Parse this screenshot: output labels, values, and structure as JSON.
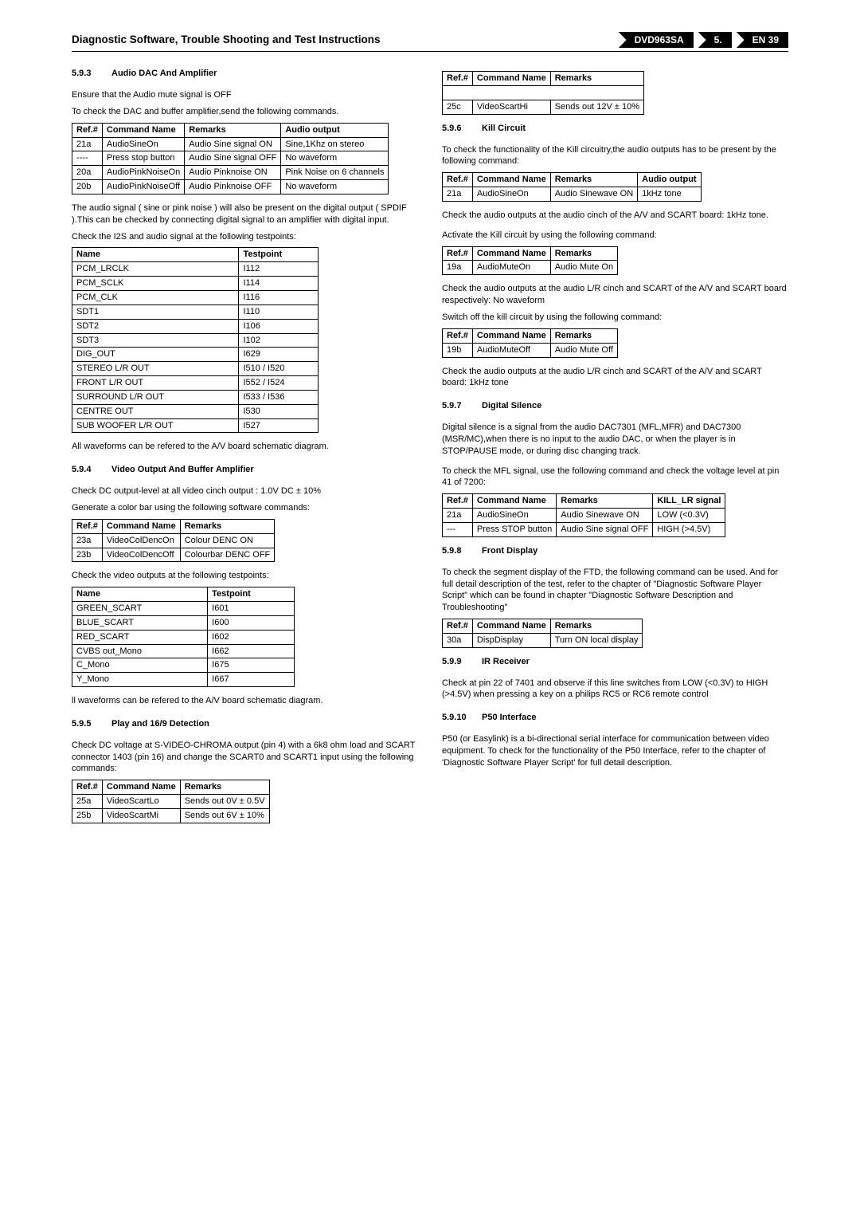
{
  "header": {
    "title": "Diagnostic Software, Trouble Shooting and Test Instructions",
    "tabs": [
      "DVD963SA",
      "5.",
      "EN 39"
    ]
  },
  "left": {
    "s593": {
      "num": "5.9.3",
      "title": "Audio DAC And Amplifier",
      "p1": "Ensure that the Audio mute signal is OFF",
      "p2": "To check the DAC and buffer amplifier,send the following commands.",
      "table1": {
        "headers": [
          "Ref.#",
          "Command Name",
          "Remarks",
          "Audio output"
        ],
        "rows": [
          [
            "21a",
            "AudioSineOn",
            "Audio Sine signal ON",
            "Sine,1Khz on stereo"
          ],
          [
            "----",
            "Press stop button",
            "Audio Sine signal OFF",
            "No waveform"
          ],
          [
            "20a",
            "AudioPinkNoiseOn",
            "Audio Pinknoise ON",
            "Pink Noise on 6 channels"
          ],
          [
            "20b",
            "AudioPinkNoiseOff",
            "Audio Pinknoise OFF",
            "No waveform"
          ]
        ]
      },
      "p3": "The audio signal ( sine or pink noise ) will also be present on the digital output ( SPDIF ).This can be checked by connecting digital signal to an amplifier with digital input.",
      "p4": "Check the I2S and audio signal at the following testpoints:",
      "table2": {
        "headers": [
          "Name",
          "Testpoint"
        ],
        "rows": [
          [
            "PCM_LRCLK",
            "I112"
          ],
          [
            "PCM_SCLK",
            "I114"
          ],
          [
            "PCM_CLK",
            "I116"
          ],
          [
            "SDT1",
            "I110"
          ],
          [
            "SDT2",
            "I106"
          ],
          [
            "SDT3",
            "I102"
          ],
          [
            "DIG_OUT",
            "I629"
          ],
          [
            "STEREO L/R OUT",
            "I510 / I520"
          ],
          [
            "FRONT L/R OUT",
            "I552 / I524"
          ],
          [
            "SURROUND L/R OUT",
            "I533 / I536"
          ],
          [
            "CENTRE OUT",
            "I530"
          ],
          [
            "SUB WOOFER L/R OUT",
            "I527"
          ]
        ]
      },
      "p5": "All waveforms can be refered to the A/V board schematic diagram."
    },
    "s594": {
      "num": "5.9.4",
      "title": "Video Output And Buffer Amplifier",
      "p1": "Check DC output-level at all video cinch output : 1.0V DC ± 10%",
      "p2": "Generate a color bar using the following software commands:",
      "table1": {
        "headers": [
          "Ref.#",
          "Command Name",
          "Remarks"
        ],
        "rows": [
          [
            "23a",
            "VideoColDencOn",
            "Colour DENC ON"
          ],
          [
            "23b",
            "VideoColDencOff",
            "Colourbar DENC OFF"
          ]
        ]
      },
      "p3": "Check the video outputs at the following testpoints:",
      "table2": {
        "headers": [
          "Name",
          "Testpoint"
        ],
        "rows": [
          [
            "GREEN_SCART",
            "I601"
          ],
          [
            "BLUE_SCART",
            "I600"
          ],
          [
            "RED_SCART",
            "I602"
          ],
          [
            "CVBS out_Mono",
            "I662"
          ],
          [
            "C_Mono",
            "I675"
          ],
          [
            "Y_Mono",
            "I667"
          ]
        ]
      },
      "p4": "ll waveforms can be refered to the A/V board schematic diagram."
    },
    "s595": {
      "num": "5.9.5",
      "title": "Play and 16/9 Detection",
      "p1": "Check DC voltage at S-VIDEO-CHROMA output (pin 4) with a 6k8 ohm load and SCART connector 1403 (pin 16) and change the SCART0 and SCART1 input using the following commands:",
      "table1": {
        "headers": [
          "Ref.#",
          "Command Name",
          "Remarks"
        ],
        "rows": [
          [
            "25a",
            "VideoScartLo",
            "Sends out 0V ± 0.5V"
          ],
          [
            "25b",
            "VideoScartMi",
            "Sends out 6V ± 10%"
          ]
        ]
      }
    }
  },
  "right": {
    "topTable": {
      "headers": [
        "Ref.#",
        "Command Name",
        "Remarks"
      ],
      "rows": [
        [
          "25c",
          "VideoScartHi",
          "Sends out 12V ± 10%"
        ]
      ]
    },
    "s596": {
      "num": "5.9.6",
      "title": "Kill Circuit",
      "p1": "To check the functionality of the Kill circuitry,the audio outputs has to be present by the following command:",
      "table1": {
        "headers": [
          "Ref.#",
          "Command Name",
          "Remarks",
          "Audio output"
        ],
        "rows": [
          [
            "21a",
            "AudioSineOn",
            "Audio Sinewave ON",
            "1kHz tone"
          ]
        ]
      },
      "p2": "Check the audio outputs at the audio cinch of the A/V and SCART board: 1kHz tone.",
      "p3": "Activate the Kill circuit by using the following command:",
      "table2": {
        "headers": [
          "Ref.#",
          "Command Name",
          "Remarks"
        ],
        "rows": [
          [
            "19a",
            "AudioMuteOn",
            "Audio Mute On"
          ]
        ]
      },
      "p4": "Check the audio outputs at the audio L/R cinch and SCART of the A/V and SCART board respectively: No waveform",
      "p5": "Switch off the kill circuit by using the following command:",
      "table3": {
        "headers": [
          "Ref.#",
          "Command Name",
          "Remarks"
        ],
        "rows": [
          [
            "19b",
            "AudioMuteOff",
            "Audio Mute Off"
          ]
        ]
      },
      "p6": "Check the audio outputs at the audio L/R cinch and SCART of the A/V and SCART board: 1kHz tone"
    },
    "s597": {
      "num": "5.9.7",
      "title": "Digital Silence",
      "p1": "Digital silence is a signal from the audio DAC7301 (MFL,MFR) and DAC7300 (MSR/MC),when there is no input to the audio DAC, or when the player is in STOP/PAUSE mode, or during disc changing track.",
      "p2": "To check the MFL signal, use the following command and check the voltage level at pin 41 of 7200:",
      "table1": {
        "headers": [
          "Ref.#",
          "Command Name",
          "Remarks",
          "KILL_LR signal"
        ],
        "rows": [
          [
            "21a",
            "AudioSineOn",
            "Audio Sinewave ON",
            "LOW (<0.3V)"
          ],
          [
            "---",
            "Press STOP button",
            "Audio Sine signal OFF",
            "HIGH (>4.5V)"
          ]
        ]
      }
    },
    "s598": {
      "num": "5.9.8",
      "title": "Front Display",
      "p1": "To check the segment display of the FTD, the following command can be used. And for full detail description of the test, refer to the chapter of \"Diagnostic Software Player Script\" which can be found in chapter \"Diagnostic Software Description and Troubleshooting\"",
      "table1": {
        "headers": [
          "Ref.#",
          "Command Name",
          "Remarks"
        ],
        "rows": [
          [
            "30a",
            "DispDisplay",
            "Turn ON local display"
          ]
        ]
      }
    },
    "s599": {
      "num": "5.9.9",
      "title": "IR Receiver",
      "p1": "Check at pin 22 of 7401 and observe if this line switches from LOW (<0.3V) to HIGH (>4.5V) when pressing a key on a philips RC5 or RC6 remote control"
    },
    "s5910": {
      "num": "5.9.10",
      "title": "P50 Interface",
      "p1": "P50 (or Easylink) is a bi-directional serial interface for communication between video equipment. To check for the functionality of the P50 Interface, refer to the chapter of 'Diagnostic Software Player Script' for full detail description."
    }
  }
}
